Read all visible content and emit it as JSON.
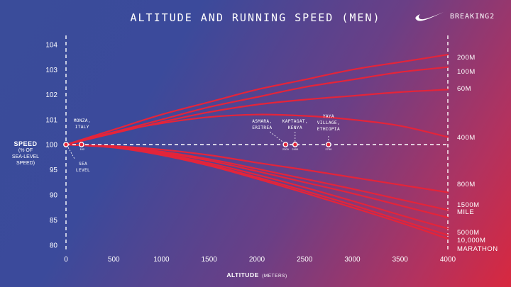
{
  "header": {
    "title": "ALTITUDE AND RUNNING SPEED (MEN)",
    "brand_text": "BREAKING2"
  },
  "colors": {
    "curve": "#e4243a",
    "marker": "#e4243a",
    "axis": "#ffffff"
  },
  "icons": {
    "brand_logo": "nike-swoosh-icon"
  },
  "chart_data": {
    "type": "line",
    "title": "ALTITUDE AND RUNNING SPEED (MEN)",
    "xlabel": "ALTITUDE",
    "xlabel_unit": "(METERS)",
    "ylabel": "SPEED",
    "ylabel_sub": [
      "(% OF",
      "SEA-LEVEL",
      "SPEED)"
    ],
    "xlim": [
      0,
      4000
    ],
    "ylim": [
      80,
      104
    ],
    "x_ticks": [
      0,
      500,
      1000,
      1500,
      2000,
      2500,
      3000,
      3500,
      4000
    ],
    "y_ticks": [
      80,
      85,
      90,
      95,
      100,
      101,
      102,
      103,
      104
    ],
    "x": [
      0,
      500,
      1000,
      1500,
      2000,
      2500,
      3000,
      3500,
      4000
    ],
    "series": [
      {
        "name": "200M",
        "values": [
          100,
          100.6,
          101.2,
          101.7,
          102.2,
          102.6,
          103.0,
          103.3,
          103.6
        ]
      },
      {
        "name": "100M",
        "values": [
          100,
          100.5,
          101.0,
          101.5,
          101.9,
          102.3,
          102.6,
          102.9,
          103.1
        ]
      },
      {
        "name": "60M",
        "values": [
          100,
          100.45,
          100.9,
          101.3,
          101.6,
          101.8,
          101.95,
          102.1,
          102.2
        ]
      },
      {
        "name": "400M",
        "values": [
          100,
          100.5,
          100.85,
          101.1,
          101.2,
          101.15,
          101.0,
          100.75,
          100.3
        ]
      },
      {
        "name": "800M",
        "values": [
          100,
          99.7,
          99.0,
          97.9,
          96.4,
          95.0,
          93.5,
          92.0,
          90.5
        ]
      },
      {
        "name": "1500M",
        "values": [
          100,
          99.6,
          98.6,
          97.1,
          95.2,
          93.2,
          91.2,
          89.1,
          87.0
        ]
      },
      {
        "name": "MILE",
        "values": [
          100,
          99.55,
          98.4,
          96.8,
          94.7,
          92.5,
          90.3,
          87.9,
          85.5
        ]
      },
      {
        "name": "5000M",
        "values": [
          100,
          99.5,
          98.2,
          96.3,
          94.0,
          91.5,
          88.8,
          86.0,
          83.3
        ]
      },
      {
        "name": "10,000M",
        "values": [
          100,
          99.45,
          98.0,
          96.0,
          93.5,
          90.8,
          88.0,
          85.0,
          82.0
        ]
      },
      {
        "name": "MARATHON",
        "values": [
          100,
          99.4,
          97.9,
          95.8,
          93.2,
          90.4,
          87.5,
          84.5,
          81.3
        ]
      }
    ],
    "right_labels": [
      "200M",
      "100M",
      "60M",
      "400M",
      "800M",
      "1500M",
      "MILE",
      "5000M",
      "10,000M",
      "MARATHON"
    ],
    "places": [
      {
        "name": "SEA LEVEL",
        "lines": [
          "SEA",
          "LEVEL"
        ],
        "altitude": 0
      },
      {
        "name": "MONZA, ITALY",
        "lines": [
          "MONZA,",
          "ITALY"
        ],
        "altitude": 162,
        "alt_label": "162"
      },
      {
        "name": "ASMARA, ERITREA",
        "lines": [
          "ASMARA,",
          "ERITREA"
        ],
        "altitude": 2300,
        "alt_label": "2300"
      },
      {
        "name": "KAPTAGAT, KENYA",
        "lines": [
          "KAPTAGAT,",
          "KENYA"
        ],
        "altitude": 2400,
        "alt_label": "2400"
      },
      {
        "name": "YAYA VILLAGE, ETHIOPIA",
        "lines": [
          "YAYA",
          "VILLAGE,",
          "ETHIOPIA"
        ],
        "altitude": 2750,
        "alt_label": "2750"
      }
    ],
    "grid": false,
    "legend": "right-end labels"
  }
}
